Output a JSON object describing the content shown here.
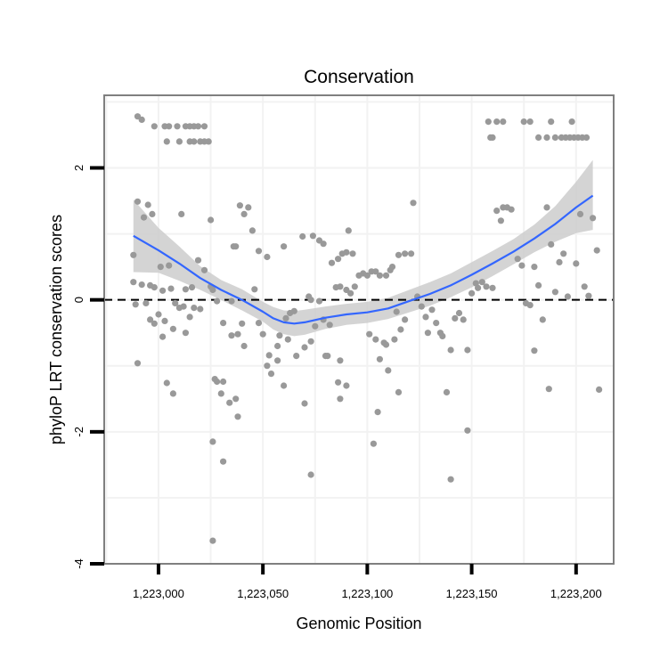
{
  "chart_data": {
    "type": "scatter",
    "title": "Conservation",
    "xlabel": "Genomic Position",
    "ylabel": "phyloP LRT conservation scores",
    "xlim": [
      1222974,
      1223218
    ],
    "ylim": [
      -4,
      3.1
    ],
    "x_ticks": [
      1223000,
      1223050,
      1223100,
      1223150,
      1223200
    ],
    "x_tick_labels": [
      "1,223,000",
      "1,223,050",
      "1,223,100",
      "1,223,150",
      "1,223,200"
    ],
    "y_ticks": [
      -4,
      -2,
      0,
      2
    ],
    "y_tick_labels": [
      "-4",
      "-2",
      "0",
      "2"
    ],
    "reference_line": {
      "y": 0,
      "style": "dashed"
    },
    "grid": true,
    "colors": {
      "points": "#999999",
      "smooth_line": "#3366ff",
      "confidence_band": "#cccccc",
      "panel_border": "#7f7f7f",
      "grid": "#f2f2f2"
    },
    "smooth": {
      "x": [
        1222988,
        1223000,
        1223010,
        1223020,
        1223030,
        1223040,
        1223050,
        1223055,
        1223060,
        1223065,
        1223070,
        1223080,
        1223090,
        1223100,
        1223110,
        1223120,
        1223130,
        1223140,
        1223150,
        1223160,
        1223170,
        1223180,
        1223190,
        1223200,
        1223208
      ],
      "y": [
        0.97,
        0.75,
        0.55,
        0.33,
        0.15,
        0.0,
        -0.18,
        -0.28,
        -0.34,
        -0.36,
        -0.34,
        -0.27,
        -0.22,
        -0.19,
        -0.13,
        -0.02,
        0.09,
        0.22,
        0.38,
        0.55,
        0.73,
        0.93,
        1.15,
        1.4,
        1.58
      ],
      "lower": [
        0.42,
        0.41,
        0.29,
        0.15,
        0.0,
        -0.16,
        -0.33,
        -0.45,
        -0.52,
        -0.55,
        -0.53,
        -0.44,
        -0.38,
        -0.35,
        -0.29,
        -0.19,
        -0.09,
        0.04,
        0.19,
        0.36,
        0.54,
        0.72,
        0.88,
        1.01,
        1.06
      ],
      "upper": [
        1.52,
        1.09,
        0.81,
        0.51,
        0.3,
        0.16,
        -0.03,
        -0.11,
        -0.16,
        -0.17,
        -0.15,
        -0.1,
        -0.06,
        -0.03,
        0.03,
        0.15,
        0.27,
        0.4,
        0.57,
        0.74,
        0.92,
        1.14,
        1.42,
        1.79,
        2.12
      ]
    },
    "points": [
      [
        1222990,
        2.78
      ],
      [
        1222992,
        2.73
      ],
      [
        1222998,
        2.63
      ],
      [
        1223003,
        2.63
      ],
      [
        1223005,
        2.63
      ],
      [
        1223009,
        2.63
      ],
      [
        1223013,
        2.63
      ],
      [
        1223015,
        2.63
      ],
      [
        1223017,
        2.63
      ],
      [
        1223019,
        2.63
      ],
      [
        1223022,
        2.63
      ],
      [
        1223004,
        2.4
      ],
      [
        1223010,
        2.4
      ],
      [
        1223015,
        2.4
      ],
      [
        1223017,
        2.4
      ],
      [
        1223020,
        2.4
      ],
      [
        1223022,
        2.4
      ],
      [
        1223024,
        2.4
      ],
      [
        1223158,
        2.7
      ],
      [
        1223162,
        2.7
      ],
      [
        1223165,
        2.7
      ],
      [
        1223175,
        2.7
      ],
      [
        1223178,
        2.7
      ],
      [
        1223188,
        2.7
      ],
      [
        1223198,
        2.7
      ],
      [
        1223159,
        2.46
      ],
      [
        1223160,
        2.46
      ],
      [
        1223182,
        2.46
      ],
      [
        1223186,
        2.46
      ],
      [
        1223190,
        2.46
      ],
      [
        1223193,
        2.46
      ],
      [
        1223195,
        2.46
      ],
      [
        1223197,
        2.46
      ],
      [
        1223199,
        2.46
      ],
      [
        1223201,
        2.46
      ],
      [
        1223203,
        2.46
      ],
      [
        1223205,
        2.46
      ],
      [
        1222990,
        1.49
      ],
      [
        1222995,
        1.44
      ],
      [
        1222993,
        1.25
      ],
      [
        1222997,
        1.3
      ],
      [
        1223011,
        1.3
      ],
      [
        1222988,
        0.68
      ],
      [
        1222988,
        0.27
      ],
      [
        1222992,
        0.23
      ],
      [
        1222996,
        0.22
      ],
      [
        1222998,
        0.19
      ],
      [
        1223001,
        0.5
      ],
      [
        1223005,
        0.52
      ],
      [
        1223002,
        0.14
      ],
      [
        1223006,
        0.17
      ],
      [
        1223013,
        0.16
      ],
      [
        1223016,
        0.19
      ],
      [
        1223019,
        0.6
      ],
      [
        1223022,
        0.45
      ],
      [
        1223025,
        0.2
      ],
      [
        1223026,
        0.15
      ],
      [
        1223025,
        1.21
      ],
      [
        1222989,
        -0.07
      ],
      [
        1222994,
        -0.05
      ],
      [
        1222996,
        -0.3
      ],
      [
        1222998,
        -0.36
      ],
      [
        1223000,
        -0.22
      ],
      [
        1223003,
        -0.32
      ],
      [
        1223008,
        -0.05
      ],
      [
        1223010,
        -0.12
      ],
      [
        1223012,
        -0.1
      ],
      [
        1223015,
        -0.26
      ],
      [
        1223017,
        -0.12
      ],
      [
        1223020,
        -0.14
      ],
      [
        1223007,
        -0.44
      ],
      [
        1223013,
        -0.5
      ],
      [
        1223002,
        -0.56
      ],
      [
        1222990,
        -0.96
      ],
      [
        1223004,
        -1.26
      ],
      [
        1223007,
        -1.42
      ],
      [
        1223031,
        -0.35
      ],
      [
        1223028,
        -0.02
      ],
      [
        1223035,
        -0.02
      ],
      [
        1223035,
        -0.54
      ],
      [
        1223038,
        -0.52
      ],
      [
        1223040,
        -0.36
      ],
      [
        1223041,
        -0.7
      ],
      [
        1223027,
        -1.2
      ],
      [
        1223028,
        -1.24
      ],
      [
        1223031,
        -1.24
      ],
      [
        1223030,
        -1.42
      ],
      [
        1223034,
        -1.56
      ],
      [
        1223037,
        -1.5
      ],
      [
        1223038,
        -1.77
      ],
      [
        1223026,
        -2.15
      ],
      [
        1223031,
        -2.45
      ],
      [
        1223026,
        -3.65
      ],
      [
        1223036,
        0.81
      ],
      [
        1223037,
        0.81
      ],
      [
        1223039,
        1.43
      ],
      [
        1223041,
        1.3
      ],
      [
        1223043,
        1.4
      ],
      [
        1223045,
        1.05
      ],
      [
        1223046,
        0.16
      ],
      [
        1223048,
        -0.35
      ],
      [
        1223050,
        -0.52
      ],
      [
        1223053,
        -0.84
      ],
      [
        1223052,
        -1.0
      ],
      [
        1223054,
        -1.12
      ],
      [
        1223057,
        -0.92
      ],
      [
        1223060,
        -1.3
      ],
      [
        1223057,
        -0.7
      ],
      [
        1223058,
        -0.54
      ],
      [
        1223062,
        -0.6
      ],
      [
        1223061,
        -0.28
      ],
      [
        1223063,
        -0.2
      ],
      [
        1223065,
        -0.17
      ],
      [
        1223048,
        0.74
      ],
      [
        1223052,
        0.65
      ],
      [
        1223060,
        0.81
      ],
      [
        1223066,
        -0.85
      ],
      [
        1223070,
        -0.72
      ],
      [
        1223073,
        -0.63
      ],
      [
        1223075,
        -0.4
      ],
      [
        1223080,
        -0.85
      ],
      [
        1223081,
        -0.85
      ],
      [
        1223087,
        -0.92
      ],
      [
        1223072,
        0.05
      ],
      [
        1223073,
        0.0
      ],
      [
        1223077,
        -0.02
      ],
      [
        1223079,
        -0.3
      ],
      [
        1223082,
        -0.38
      ],
      [
        1223069,
        0.96
      ],
      [
        1223074,
        0.97
      ],
      [
        1223077,
        0.9
      ],
      [
        1223079,
        0.85
      ],
      [
        1223083,
        0.56
      ],
      [
        1223086,
        0.62
      ],
      [
        1223088,
        0.7
      ],
      [
        1223090,
        0.72
      ],
      [
        1223091,
        1.05
      ],
      [
        1223093,
        0.7
      ],
      [
        1223085,
        0.19
      ],
      [
        1223087,
        0.2
      ],
      [
        1223090,
        0.15
      ],
      [
        1223092,
        0.1
      ],
      [
        1223094,
        0.2
      ],
      [
        1223096,
        0.37
      ],
      [
        1223098,
        0.4
      ],
      [
        1223100,
        0.37
      ],
      [
        1223102,
        0.43
      ],
      [
        1223104,
        0.43
      ],
      [
        1223106,
        0.37
      ],
      [
        1223109,
        0.37
      ],
      [
        1223111,
        0.45
      ],
      [
        1223112,
        0.5
      ],
      [
        1223070,
        -1.57
      ],
      [
        1223073,
        -2.65
      ],
      [
        1223086,
        -1.25
      ],
      [
        1223087,
        -1.5
      ],
      [
        1223090,
        -1.3
      ],
      [
        1223101,
        -0.52
      ],
      [
        1223104,
        -0.6
      ],
      [
        1223106,
        -0.9
      ],
      [
        1223108,
        -0.65
      ],
      [
        1223109,
        -0.68
      ],
      [
        1223110,
        -1.07
      ],
      [
        1223113,
        -0.6
      ],
      [
        1223114,
        -0.18
      ],
      [
        1223116,
        -0.45
      ],
      [
        1223118,
        -0.3
      ],
      [
        1223103,
        -2.18
      ],
      [
        1223105,
        -1.7
      ],
      [
        1223115,
        0.68
      ],
      [
        1223118,
        0.7
      ],
      [
        1223121,
        0.7
      ],
      [
        1223115,
        -1.4
      ],
      [
        1223122,
        1.47
      ],
      [
        1223124,
        0.05
      ],
      [
        1223126,
        -0.1
      ],
      [
        1223128,
        -0.26
      ],
      [
        1223129,
        -0.5
      ],
      [
        1223131,
        -0.15
      ],
      [
        1223133,
        -0.35
      ],
      [
        1223135,
        -0.5
      ],
      [
        1223136,
        -0.55
      ],
      [
        1223138,
        -1.4
      ],
      [
        1223140,
        -0.76
      ],
      [
        1223142,
        -0.28
      ],
      [
        1223144,
        -0.2
      ],
      [
        1223146,
        -0.3
      ],
      [
        1223148,
        -0.76
      ],
      [
        1223140,
        -2.72
      ],
      [
        1223148,
        -1.98
      ],
      [
        1223150,
        0.1
      ],
      [
        1223152,
        0.25
      ],
      [
        1223153,
        0.18
      ],
      [
        1223155,
        0.27
      ],
      [
        1223157,
        0.2
      ],
      [
        1223160,
        0.18
      ],
      [
        1223162,
        1.35
      ],
      [
        1223164,
        1.2
      ],
      [
        1223165,
        1.4
      ],
      [
        1223167,
        1.4
      ],
      [
        1223169,
        1.37
      ],
      [
        1223172,
        0.62
      ],
      [
        1223174,
        0.52
      ],
      [
        1223176,
        -0.05
      ],
      [
        1223178,
        -0.08
      ],
      [
        1223180,
        0.5
      ],
      [
        1223182,
        0.22
      ],
      [
        1223184,
        -0.3
      ],
      [
        1223180,
        -0.77
      ],
      [
        1223186,
        1.4
      ],
      [
        1223187,
        -1.35
      ],
      [
        1223188,
        0.84
      ],
      [
        1223190,
        0.12
      ],
      [
        1223192,
        0.57
      ],
      [
        1223194,
        0.7
      ],
      [
        1223196,
        0.05
      ],
      [
        1223200,
        0.55
      ],
      [
        1223202,
        1.3
      ],
      [
        1223204,
        0.2
      ],
      [
        1223206,
        0.06
      ],
      [
        1223208,
        1.24
      ],
      [
        1223210,
        0.75
      ],
      [
        1223211,
        -1.36
      ]
    ]
  }
}
